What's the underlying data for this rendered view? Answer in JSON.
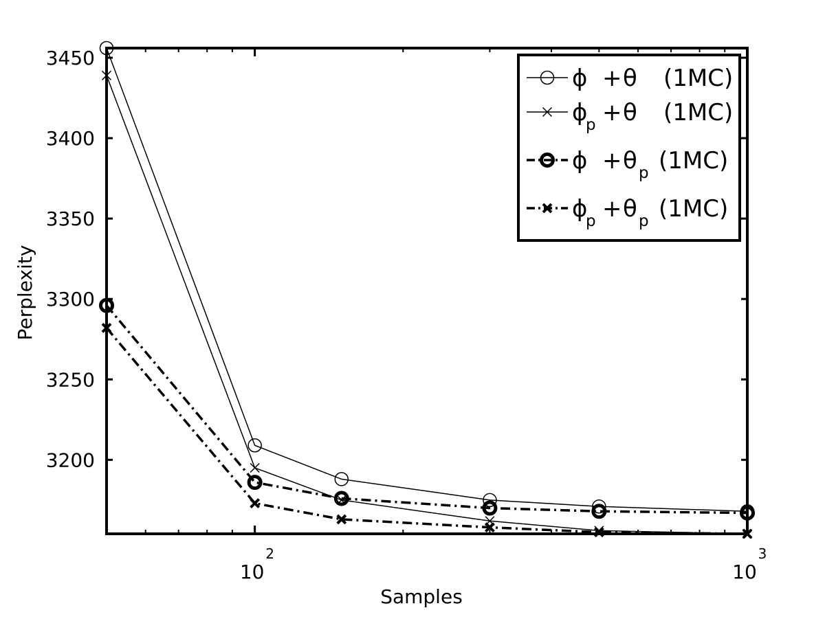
{
  "chart_data": {
    "type": "line",
    "title": "",
    "xlabel": "Samples",
    "ylabel": "Perplexity",
    "x_scale": "log",
    "xlim": [
      50,
      1000
    ],
    "ylim": [
      3154,
      3456
    ],
    "grid": false,
    "legend_position": "top-right",
    "xticks": [
      {
        "value": 100,
        "base": "10",
        "exponent": "2"
      },
      {
        "value": 1000,
        "base": "10",
        "exponent": "3"
      }
    ],
    "yticks": [
      {
        "value": 3200,
        "label": "3200"
      },
      {
        "value": 3250,
        "label": "3250"
      },
      {
        "value": 3300,
        "label": "3300"
      },
      {
        "value": 3350,
        "label": "3350"
      },
      {
        "value": 3400,
        "label": "3400"
      },
      {
        "value": 3450,
        "label": "3450"
      }
    ],
    "x": [
      50,
      100,
      150,
      300,
      500,
      1000
    ],
    "series": [
      {
        "legend": {
          "phi_sub": "",
          "theta_sub": "",
          "suffix": "(1MC)"
        },
        "style": "solid",
        "marker": "circle",
        "bold": false,
        "values": [
          3456,
          3209,
          3188,
          3175,
          3171,
          3168
        ]
      },
      {
        "legend": {
          "phi_sub": "p",
          "theta_sub": "",
          "suffix": "(1MC)"
        },
        "style": "solid",
        "marker": "x",
        "bold": false,
        "values": [
          3439,
          3195,
          3175,
          3162,
          3156,
          3154
        ]
      },
      {
        "legend": {
          "phi_sub": "",
          "theta_sub": "p",
          "suffix": "(1MC)"
        },
        "style": "dashdot",
        "marker": "circle",
        "bold": true,
        "values": [
          3296,
          3186,
          3176,
          3170,
          3168,
          3167
        ]
      },
      {
        "legend": {
          "phi_sub": "p",
          "theta_sub": "p",
          "suffix": "(1MC)"
        },
        "style": "dashdot",
        "marker": "x",
        "bold": true,
        "values": [
          3282,
          3173,
          3163,
          3158,
          3155,
          3154
        ]
      }
    ],
    "symbols": {
      "phi": "ϕ",
      "theta": "θ",
      "plus": "+"
    },
    "colors": {
      "line": "#000000",
      "background": "#ffffff"
    }
  }
}
